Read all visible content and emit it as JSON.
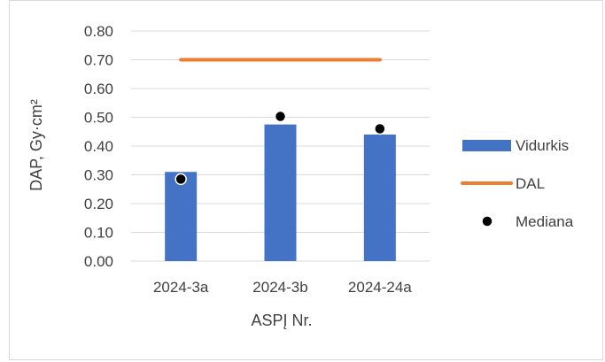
{
  "chart_data": {
    "type": "bar",
    "categories": [
      "2024-3a",
      "2024-3b",
      "2024-24a"
    ],
    "series": [
      {
        "name": "Vidurkis",
        "kind": "bar",
        "color": "#4472c4",
        "values": [
          0.31,
          0.475,
          0.44
        ]
      },
      {
        "name": "DAL",
        "kind": "line",
        "color": "#ed7d31",
        "values": [
          0.7,
          0.7,
          0.7
        ]
      },
      {
        "name": "Mediana",
        "kind": "marker",
        "color": "#000000",
        "values": [
          0.285,
          0.503,
          0.46
        ]
      }
    ],
    "xlabel": "ASPĮ Nr.",
    "ylabel": "DAP,  Gy·cm²",
    "ylim": [
      0,
      0.8
    ],
    "yticks": [
      "0.00",
      "0.10",
      "0.20",
      "0.30",
      "0.40",
      "0.50",
      "0.60",
      "0.70",
      "0.80"
    ],
    "grid": true,
    "legend_position": "right"
  }
}
